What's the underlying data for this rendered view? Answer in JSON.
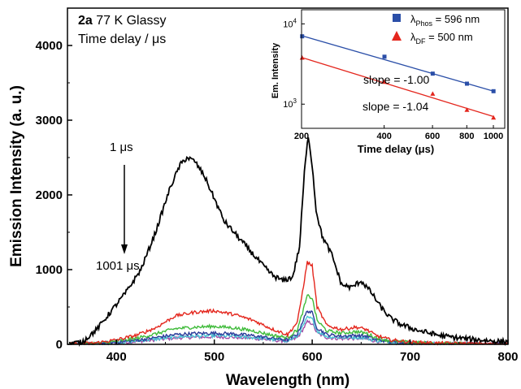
{
  "main": {
    "annotations": {
      "sample_bold": "2a",
      "sample_rest": " 77 K Glassy",
      "delay_label": "Time delay / μs",
      "start_label": "1 μs",
      "end_label": "1001 μs"
    },
    "chart_data": {
      "type": "line",
      "xlabel": "Wavelength (nm)",
      "ylabel": "Emission Intensity (a. u.)",
      "xlim": [
        350,
        800
      ],
      "ylim": [
        0,
        4500
      ],
      "x_ticks": [
        400,
        500,
        600,
        700,
        800
      ],
      "y_ticks": [
        0,
        1000,
        2000,
        3000,
        4000
      ],
      "grid": false,
      "series": [
        {
          "delay_us": 1,
          "color": "#000000",
          "x": [
            352,
            365,
            380,
            395,
            410,
            425,
            440,
            455,
            465,
            472,
            480,
            490,
            500,
            510,
            520,
            530,
            540,
            550,
            560,
            570,
            580,
            587,
            592,
            596,
            600,
            604,
            610,
            620,
            630,
            640,
            650,
            660,
            670,
            680,
            690,
            700,
            710,
            720,
            730,
            740,
            750,
            760,
            770,
            780,
            790,
            800
          ],
          "y": [
            10,
            30,
            200,
            450,
            700,
            1000,
            1500,
            2100,
            2400,
            2500,
            2450,
            2250,
            1950,
            1650,
            1500,
            1350,
            1200,
            1050,
            920,
            850,
            900,
            1300,
            2300,
            2800,
            2400,
            1800,
            1450,
            1200,
            800,
            760,
            850,
            700,
            500,
            350,
            270,
            220,
            180,
            150,
            120,
            100,
            85,
            70,
            60,
            50,
            40,
            35
          ]
        },
        {
          "delay_us": 201,
          "color": "#e4261d",
          "x": [
            352,
            380,
            400,
            420,
            440,
            460,
            480,
            500,
            520,
            540,
            560,
            575,
            585,
            590,
            595,
            600,
            605,
            615,
            630,
            645,
            655,
            665,
            680,
            700,
            730,
            760,
            800
          ],
          "y": [
            0,
            20,
            60,
            120,
            220,
            380,
            430,
            450,
            400,
            320,
            200,
            130,
            300,
            700,
            1100,
            1050,
            500,
            250,
            200,
            230,
            200,
            120,
            60,
            30,
            15,
            10,
            5
          ]
        },
        {
          "delay_us": 401,
          "color": "#3fbb3a",
          "x": [
            352,
            380,
            400,
            420,
            440,
            460,
            480,
            500,
            520,
            540,
            560,
            575,
            585,
            590,
            595,
            600,
            605,
            615,
            630,
            645,
            655,
            665,
            680,
            700,
            730,
            760,
            800
          ],
          "y": [
            0,
            15,
            40,
            80,
            140,
            210,
            230,
            240,
            220,
            180,
            120,
            90,
            200,
            420,
            650,
            620,
            320,
            180,
            150,
            170,
            150,
            90,
            45,
            25,
            12,
            8,
            4
          ]
        },
        {
          "delay_us": 601,
          "color": "#2b3c9a",
          "x": [
            352,
            380,
            400,
            420,
            440,
            460,
            480,
            500,
            520,
            540,
            560,
            575,
            585,
            590,
            595,
            600,
            605,
            615,
            630,
            645,
            655,
            665,
            680,
            700,
            730,
            760,
            800
          ],
          "y": [
            0,
            10,
            30,
            55,
            90,
            130,
            145,
            150,
            140,
            115,
            80,
            60,
            140,
            300,
            450,
            420,
            220,
            130,
            110,
            120,
            110,
            65,
            35,
            20,
            10,
            6,
            3
          ]
        },
        {
          "delay_us": 801,
          "color": "#49c7d6",
          "x": [
            352,
            380,
            400,
            420,
            440,
            460,
            480,
            500,
            520,
            540,
            560,
            575,
            585,
            590,
            595,
            600,
            605,
            615,
            630,
            645,
            655,
            665,
            680,
            700,
            730,
            760,
            800
          ],
          "y": [
            0,
            8,
            25,
            45,
            70,
            100,
            110,
            115,
            108,
            90,
            65,
            48,
            110,
            230,
            360,
            340,
            180,
            105,
            90,
            95,
            85,
            50,
            28,
            15,
            8,
            5,
            2
          ]
        },
        {
          "delay_us": 1001,
          "color": "#a24ba6",
          "x": [
            352,
            380,
            400,
            420,
            440,
            460,
            480,
            500,
            520,
            540,
            560,
            575,
            585,
            590,
            595,
            600,
            605,
            615,
            630,
            645,
            655,
            665,
            680,
            700,
            730,
            760,
            800
          ],
          "y": [
            0,
            6,
            20,
            38,
            60,
            85,
            95,
            100,
            95,
            80,
            55,
            40,
            90,
            190,
            300,
            280,
            150,
            90,
            75,
            80,
            72,
            42,
            24,
            13,
            7,
            4,
            2
          ]
        }
      ]
    },
    "inset": {
      "chart_data": {
        "type": "scatter",
        "xlabel": "Time delay (μs)",
        "ylabel": "Em. Intensity",
        "xscale": "log",
        "yscale": "log",
        "xlim": [
          200,
          1100
        ],
        "ylim": [
          500,
          15000
        ],
        "x_ticks": [
          200,
          400,
          600,
          800,
          1000
        ],
        "y_ticks": [
          {
            "value": 1000,
            "base": "10",
            "exp": "3"
          },
          {
            "value": 10000,
            "base": "10",
            "exp": "4"
          }
        ],
        "series": [
          {
            "name_main": "λ",
            "name_sub": "Phos",
            "name_rest": " = 596 nm",
            "marker": "square",
            "color": "#2b4fa8",
            "x": [
              201,
              401,
              601,
              801,
              1001
            ],
            "y": [
              7000,
              3900,
              2400,
              1800,
              1450
            ]
          },
          {
            "name_main": "λ",
            "name_sub": "DF",
            "name_rest": " = 500 nm",
            "marker": "triangle",
            "color": "#e4261d",
            "x": [
              201,
              401,
              601,
              801,
              1001
            ],
            "y": [
              3800,
              1900,
              1350,
              850,
              680
            ]
          }
        ],
        "fits": [
          {
            "color": "#2b4fa8",
            "x": [
              201,
              1001
            ],
            "y": [
              7100,
              1450
            ]
          },
          {
            "color": "#e4261d",
            "x": [
              201,
              1001
            ],
            "y": [
              3800,
              700
            ]
          }
        ],
        "annotations": [
          "slope = -1.00",
          "slope = -1.04"
        ]
      }
    }
  }
}
